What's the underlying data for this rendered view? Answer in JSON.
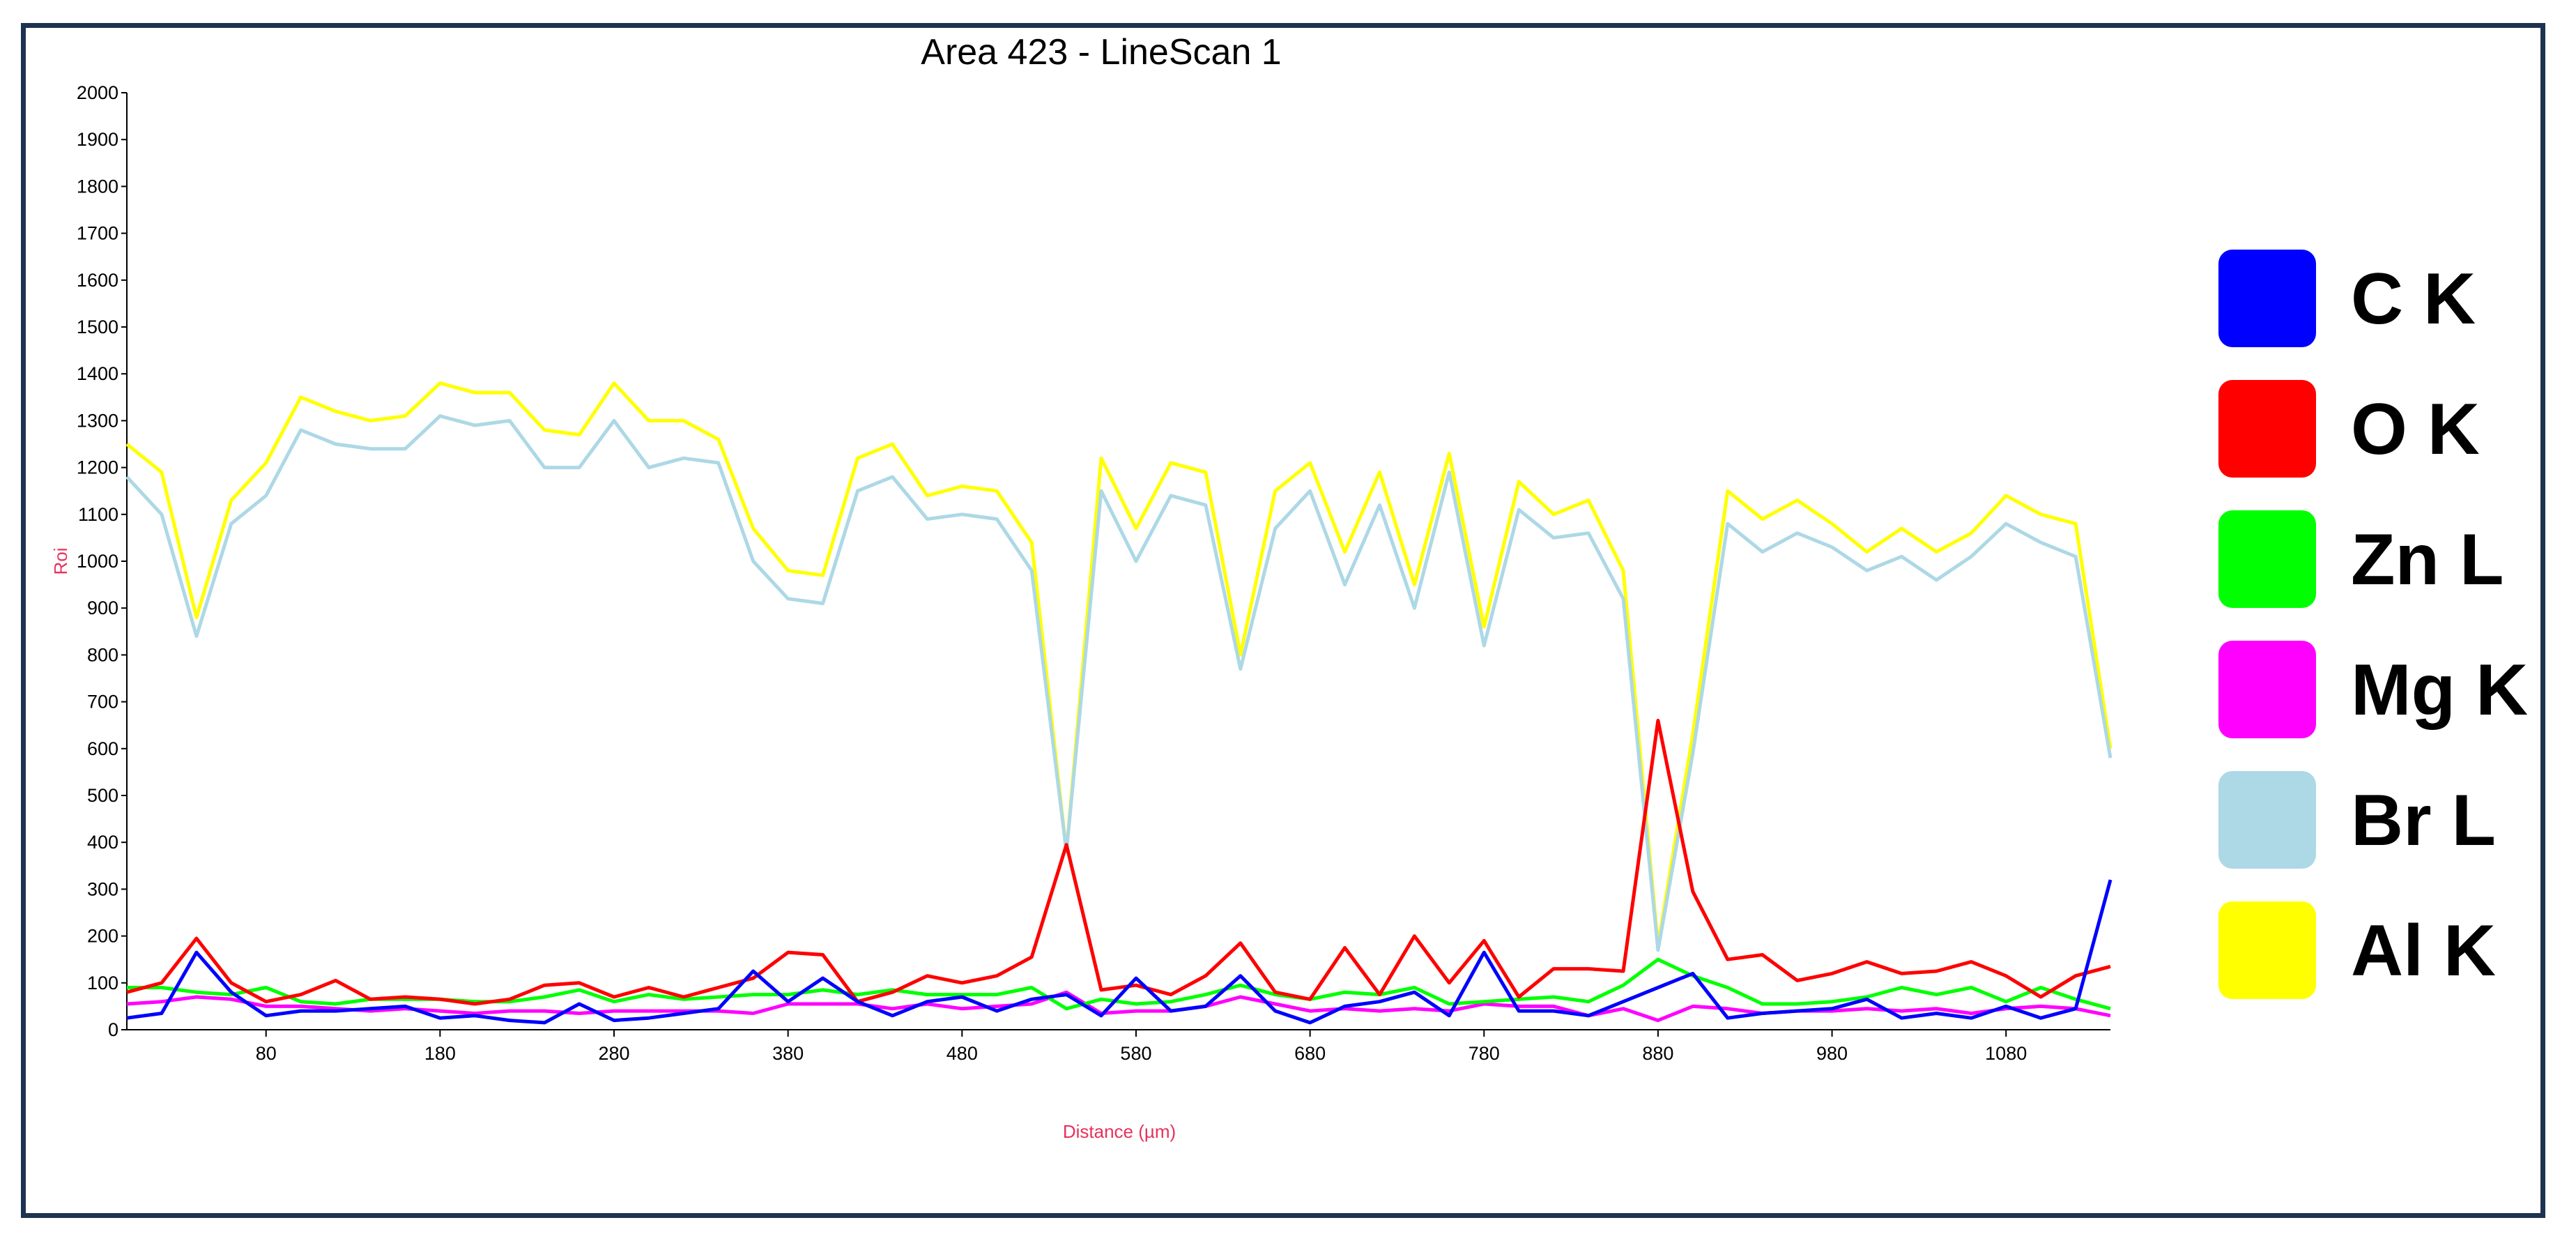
{
  "chart_data": {
    "type": "line",
    "title": "Area 423 - LineScan 1",
    "xlabel": "Distance (µm)",
    "ylabel": "Roi",
    "xlim": [
      0,
      1140
    ],
    "ylim": [
      0,
      2000
    ],
    "x_ticks": [
      80,
      180,
      280,
      380,
      480,
      580,
      680,
      780,
      880,
      980,
      1080
    ],
    "y_ticks": [
      0,
      100,
      200,
      300,
      400,
      500,
      600,
      700,
      800,
      900,
      1000,
      1100,
      1200,
      1300,
      1400,
      1500,
      1600,
      1700,
      1800,
      1900,
      2000
    ],
    "grid": false,
    "legend_position": "right",
    "x": [
      0,
      20,
      40,
      60,
      80,
      100,
      120,
      140,
      160,
      180,
      200,
      220,
      240,
      260,
      280,
      300,
      320,
      340,
      360,
      380,
      400,
      420,
      440,
      460,
      480,
      500,
      520,
      540,
      560,
      580,
      600,
      620,
      640,
      660,
      680,
      700,
      720,
      740,
      760,
      780,
      800,
      820,
      840,
      860,
      880,
      900,
      920,
      940,
      960,
      980,
      1000,
      1020,
      1040,
      1060,
      1080,
      1100,
      1120,
      1140
    ],
    "series": [
      {
        "name": "C K",
        "color": "#0000ff",
        "values": [
          25,
          35,
          165,
          80,
          30,
          40,
          40,
          45,
          50,
          25,
          30,
          20,
          15,
          55,
          20,
          25,
          35,
          45,
          125,
          60,
          110,
          60,
          30,
          60,
          70,
          40,
          65,
          75,
          30,
          110,
          40,
          50,
          115,
          40,
          15,
          50,
          60,
          80,
          30,
          165,
          40,
          40,
          30,
          60,
          90,
          120,
          25,
          35,
          40,
          45,
          65,
          25,
          35,
          25,
          50,
          25,
          45,
          320
        ]
      },
      {
        "name": "O K",
        "color": "#ff0000",
        "values": [
          80,
          100,
          195,
          100,
          60,
          75,
          105,
          65,
          70,
          65,
          55,
          65,
          95,
          100,
          70,
          90,
          70,
          90,
          110,
          165,
          160,
          60,
          80,
          115,
          100,
          115,
          155,
          395,
          85,
          95,
          75,
          115,
          185,
          80,
          65,
          175,
          75,
          200,
          100,
          190,
          70,
          130,
          130,
          125,
          660,
          295,
          150,
          160,
          105,
          120,
          145,
          120,
          125,
          145,
          115,
          70,
          115,
          135
        ]
      },
      {
        "name": "Zn L",
        "color": "#00ff00",
        "values": [
          90,
          90,
          80,
          75,
          90,
          60,
          55,
          65,
          65,
          65,
          60,
          60,
          70,
          85,
          60,
          75,
          65,
          70,
          75,
          75,
          85,
          75,
          85,
          75,
          75,
          75,
          90,
          45,
          65,
          55,
          60,
          75,
          95,
          75,
          65,
          80,
          75,
          90,
          55,
          60,
          65,
          70,
          60,
          95,
          150,
          115,
          90,
          55,
          55,
          60,
          70,
          90,
          75,
          90,
          60,
          90,
          65,
          45
        ]
      },
      {
        "name": "Mg K",
        "color": "#ff00ff",
        "values": [
          55,
          60,
          70,
          65,
          50,
          50,
          45,
          40,
          45,
          40,
          35,
          40,
          40,
          35,
          40,
          40,
          40,
          40,
          35,
          55,
          55,
          55,
          45,
          55,
          45,
          50,
          55,
          80,
          35,
          40,
          40,
          50,
          70,
          55,
          40,
          45,
          40,
          45,
          40,
          55,
          50,
          50,
          30,
          45,
          20,
          50,
          45,
          35,
          40,
          40,
          45,
          40,
          45,
          35,
          45,
          50,
          45,
          30
        ]
      },
      {
        "name": "Br L",
        "color": "#add8e6",
        "values": [
          1180,
          1100,
          840,
          1080,
          1140,
          1280,
          1250,
          1240,
          1240,
          1310,
          1290,
          1300,
          1200,
          1200,
          1300,
          1200,
          1220,
          1210,
          1000,
          920,
          910,
          1150,
          1180,
          1090,
          1100,
          1090,
          980,
          380,
          1150,
          1000,
          1140,
          1120,
          770,
          1070,
          1150,
          950,
          1120,
          900,
          1190,
          820,
          1110,
          1050,
          1060,
          920,
          170,
          590,
          1080,
          1020,
          1060,
          1030,
          980,
          1010,
          960,
          1010,
          1080,
          1040,
          1010,
          580
        ]
      },
      {
        "name": "Al K",
        "color": "#ffff00",
        "values": [
          1250,
          1190,
          880,
          1130,
          1210,
          1350,
          1320,
          1300,
          1310,
          1380,
          1360,
          1360,
          1280,
          1270,
          1380,
          1300,
          1300,
          1260,
          1070,
          980,
          970,
          1220,
          1250,
          1140,
          1160,
          1150,
          1040,
          380,
          1220,
          1070,
          1210,
          1190,
          800,
          1150,
          1210,
          1020,
          1190,
          950,
          1230,
          860,
          1170,
          1100,
          1130,
          980,
          180,
          630,
          1150,
          1090,
          1130,
          1080,
          1020,
          1070,
          1020,
          1060,
          1140,
          1100,
          1080,
          600
        ]
      }
    ]
  },
  "legend": {
    "items": [
      {
        "label": "C K",
        "color": "#0000ff"
      },
      {
        "label": "O K",
        "color": "#ff0000"
      },
      {
        "label": "Zn L",
        "color": "#00ff00"
      },
      {
        "label": "Mg K",
        "color": "#ff00ff"
      },
      {
        "label": "Br L",
        "color": "#add8e6"
      },
      {
        "label": "Al K",
        "color": "#ffff00"
      }
    ]
  }
}
